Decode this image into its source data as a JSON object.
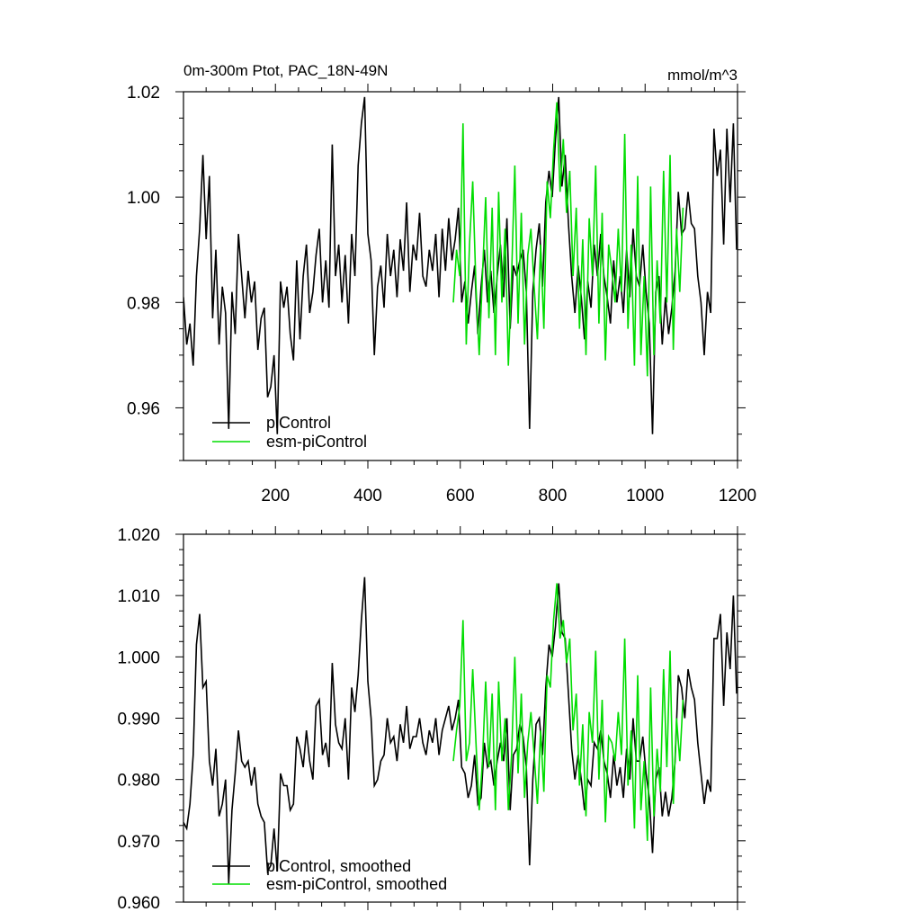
{
  "figure": {
    "title_left": "0m-300m Ptot, PAC_18N-49N",
    "title_right": "mmol/m^3"
  },
  "chart_data": [
    {
      "type": "line",
      "title": "0m-300m Ptot, PAC_18N-49N",
      "units": "mmol/m^3",
      "xlim": [
        1,
        1200
      ],
      "ylim": [
        0.95,
        1.02
      ],
      "x_ticks": [
        200,
        400,
        600,
        800,
        1000,
        1200
      ],
      "x_tick_labels": [
        "200",
        "400",
        "600",
        "800",
        "1000",
        "1200"
      ],
      "y_ticks": [
        0.96,
        0.98,
        1.0,
        1.02
      ],
      "y_tick_labels": [
        "0.96",
        "0.98",
        "1.00",
        "1.02"
      ],
      "legend_placement": "bottom-left",
      "series": [
        {
          "name": "piControl",
          "color": "#000000",
          "x": [
            1,
            8,
            15,
            22,
            29,
            36,
            43,
            50,
            57,
            64,
            71,
            78,
            85,
            92,
            99,
            106,
            113,
            120,
            127,
            134,
            141,
            148,
            155,
            162,
            169,
            176,
            183,
            190,
            197,
            204,
            211,
            218,
            225,
            232,
            239,
            246,
            253,
            260,
            267,
            274,
            281,
            288,
            295,
            302,
            309,
            316,
            323,
            330,
            337,
            344,
            351,
            358,
            365,
            372,
            379,
            386,
            393,
            400,
            407,
            414,
            421,
            428,
            435,
            442,
            449,
            456,
            463,
            470,
            477,
            484,
            491,
            498,
            505,
            512,
            519,
            526,
            533,
            540,
            547,
            554,
            561,
            568,
            575,
            582,
            589,
            596,
            603,
            610,
            617,
            624,
            631,
            638,
            645,
            652,
            659,
            666,
            673,
            680,
            687,
            694,
            701,
            708,
            715,
            722,
            729,
            736,
            743,
            750,
            757,
            764,
            771,
            778,
            785,
            792,
            799,
            806,
            813,
            820,
            827,
            834,
            841,
            848,
            855,
            862,
            869,
            876,
            883,
            890,
            897,
            904,
            911,
            918,
            925,
            932,
            939,
            946,
            953,
            960,
            967,
            974,
            981,
            988,
            995,
            1002,
            1009,
            1016,
            1023,
            1030,
            1037,
            1044,
            1051,
            1058,
            1065,
            1072,
            1079,
            1086,
            1093,
            1100,
            1107,
            1114,
            1121,
            1128,
            1135,
            1142,
            1149,
            1156,
            1163,
            1170,
            1177,
            1184,
            1191,
            1198
          ],
          "y": [
            0.981,
            0.972,
            0.976,
            0.968,
            0.985,
            0.994,
            1.008,
            0.992,
            1.004,
            0.977,
            0.99,
            0.972,
            0.983,
            0.978,
            0.956,
            0.982,
            0.974,
            0.993,
            0.985,
            0.977,
            0.986,
            0.98,
            0.984,
            0.971,
            0.977,
            0.979,
            0.962,
            0.964,
            0.97,
            0.955,
            0.984,
            0.979,
            0.983,
            0.974,
            0.969,
            0.988,
            0.973,
            0.985,
            0.991,
            0.978,
            0.982,
            0.989,
            0.994,
            0.98,
            0.988,
            0.979,
            1.01,
            0.985,
            0.991,
            0.98,
            0.989,
            0.976,
            0.993,
            0.985,
            1.006,
            1.014,
            1.019,
            0.993,
            0.988,
            0.97,
            0.983,
            0.987,
            0.979,
            0.993,
            0.985,
            0.99,
            0.981,
            0.992,
            0.986,
            0.999,
            0.982,
            0.991,
            0.988,
            0.997,
            0.985,
            0.983,
            0.99,
            0.986,
            0.993,
            0.981,
            0.994,
            0.986,
            0.996,
            0.988,
            0.992,
            0.998,
            0.98,
            0.984,
            0.976,
            0.982,
            0.987,
            0.974,
            0.983,
            0.99,
            0.98,
            0.986,
            0.978,
            0.985,
            0.991,
            0.981,
            0.996,
            0.975,
            0.987,
            0.985,
            0.988,
            0.99,
            0.982,
            0.956,
            0.982,
            0.99,
            0.995,
            0.983,
            0.999,
            1.005,
            1.0,
            1.011,
            1.019,
            1.002,
            1.008,
            0.995,
            0.985,
            0.978,
            0.987,
            0.981,
            0.973,
            0.984,
            0.979,
            0.991,
            0.985,
            0.993,
            0.985,
            0.981,
            0.976,
            0.988,
            0.98,
            0.985,
            0.978,
            0.99,
            0.981,
            0.994,
            0.985,
            0.983,
            0.991,
            0.982,
            0.976,
            0.955,
            0.982,
            0.985,
            0.972,
            0.981,
            0.974,
            0.979,
            0.986,
            1.001,
            0.993,
            0.994,
            1.001,
            0.995,
            0.994,
            0.985,
            0.98,
            0.97,
            0.982,
            0.978,
            1.013,
            1.004,
            1.009,
            0.991,
            1.013,
            0.999,
            1.014,
            0.99
          ]
        },
        {
          "name": "esm-piControl",
          "color": "#00dd00",
          "x": [
            585,
            592,
            599,
            606,
            613,
            620,
            627,
            634,
            641,
            648,
            655,
            662,
            669,
            676,
            683,
            690,
            697,
            704,
            711,
            718,
            725,
            732,
            739,
            746,
            753,
            760,
            767,
            774,
            781,
            788,
            795,
            802,
            809,
            816,
            823,
            830,
            837,
            844,
            851,
            858,
            865,
            872,
            879,
            886,
            893,
            900,
            907,
            914,
            921,
            928,
            935,
            942,
            949,
            956,
            963,
            970,
            977,
            984,
            991,
            998,
            1005,
            1012,
            1019,
            1026,
            1033,
            1040,
            1047,
            1054,
            1061,
            1068,
            1075,
            1082
          ],
          "y": [
            0.98,
            0.99,
            0.985,
            1.014,
            0.972,
            0.991,
            1.003,
            0.983,
            0.97,
            0.985,
            1.0,
            0.977,
            0.998,
            0.97,
            1.001,
            0.98,
            0.994,
            0.968,
            0.985,
            1.006,
            0.976,
            0.997,
            0.972,
            0.989,
            0.994,
            0.983,
            0.973,
            0.991,
            0.975,
            1.003,
            0.996,
            1.009,
            1.018,
            1.001,
            1.011,
            0.997,
            1.005,
            0.985,
            0.998,
            0.975,
            0.992,
            0.97,
            0.996,
            0.985,
            1.006,
            0.976,
            0.997,
            0.969,
            0.991,
            0.986,
            0.98,
            0.994,
            0.982,
            1.012,
            0.975,
            0.991,
            0.968,
            1.004,
            0.97,
            0.985,
            0.966,
            1.002,
            0.97,
            0.988,
            0.976,
            1.005,
            0.98,
            1.008,
            0.971,
            0.994,
            0.982,
            0.998
          ]
        }
      ]
    },
    {
      "type": "line",
      "xlim": [
        1,
        1200
      ],
      "ylim": [
        0.96,
        1.02
      ],
      "x_ticks": [
        200,
        400,
        600,
        800,
        1000,
        1200
      ],
      "y_ticks": [
        0.96,
        0.97,
        0.98,
        0.99,
        1.0,
        1.01,
        1.02
      ],
      "y_tick_labels": [
        "0.960",
        "0.970",
        "0.980",
        "0.990",
        "1.000",
        "1.010",
        "1.020"
      ],
      "legend_placement": "bottom-left",
      "series": [
        {
          "name": "piControl, smoothed",
          "color": "#000000",
          "x": [
            1,
            8,
            15,
            22,
            29,
            36,
            43,
            50,
            57,
            64,
            71,
            78,
            85,
            92,
            99,
            106,
            113,
            120,
            127,
            134,
            141,
            148,
            155,
            162,
            169,
            176,
            183,
            190,
            197,
            204,
            211,
            218,
            225,
            232,
            239,
            246,
            253,
            260,
            267,
            274,
            281,
            288,
            295,
            302,
            309,
            316,
            323,
            330,
            337,
            344,
            351,
            358,
            365,
            372,
            379,
            386,
            393,
            400,
            407,
            414,
            421,
            428,
            435,
            442,
            449,
            456,
            463,
            470,
            477,
            484,
            491,
            498,
            505,
            512,
            519,
            526,
            533,
            540,
            547,
            554,
            561,
            568,
            575,
            582,
            589,
            596,
            603,
            610,
            617,
            624,
            631,
            638,
            645,
            652,
            659,
            666,
            673,
            680,
            687,
            694,
            701,
            708,
            715,
            722,
            729,
            736,
            743,
            750,
            757,
            764,
            771,
            778,
            785,
            792,
            799,
            806,
            813,
            820,
            827,
            834,
            841,
            848,
            855,
            862,
            869,
            876,
            883,
            890,
            897,
            904,
            911,
            918,
            925,
            932,
            939,
            946,
            953,
            960,
            967,
            974,
            981,
            988,
            995,
            1002,
            1009,
            1016,
            1023,
            1030,
            1037,
            1044,
            1051,
            1058,
            1065,
            1072,
            1079,
            1086,
            1093,
            1100,
            1107,
            1114,
            1121,
            1128,
            1135,
            1142,
            1149,
            1156,
            1163,
            1170,
            1177,
            1184,
            1191,
            1198
          ],
          "y": [
            0.973,
            0.972,
            0.976,
            0.984,
            1.002,
            1.007,
            0.995,
            0.996,
            0.983,
            0.979,
            0.985,
            0.974,
            0.976,
            0.98,
            0.963,
            0.975,
            0.981,
            0.988,
            0.983,
            0.982,
            0.983,
            0.979,
            0.982,
            0.976,
            0.974,
            0.973,
            0.965,
            0.966,
            0.972,
            0.965,
            0.981,
            0.979,
            0.979,
            0.975,
            0.976,
            0.987,
            0.985,
            0.982,
            0.988,
            0.983,
            0.98,
            0.992,
            0.993,
            0.984,
            0.986,
            0.982,
            0.999,
            0.989,
            0.986,
            0.985,
            0.99,
            0.98,
            0.995,
            0.991,
            0.997,
            1.006,
            1.013,
            0.996,
            0.99,
            0.979,
            0.98,
            0.983,
            0.984,
            0.99,
            0.986,
            0.987,
            0.983,
            0.989,
            0.986,
            0.992,
            0.985,
            0.987,
            0.987,
            0.99,
            0.986,
            0.984,
            0.988,
            0.986,
            0.99,
            0.984,
            0.988,
            0.99,
            0.992,
            0.988,
            0.99,
            0.993,
            0.982,
            0.981,
            0.977,
            0.979,
            0.984,
            0.976,
            0.977,
            0.986,
            0.982,
            0.983,
            0.979,
            0.983,
            0.986,
            0.983,
            0.99,
            0.975,
            0.984,
            0.985,
            0.989,
            0.987,
            0.982,
            0.966,
            0.98,
            0.989,
            0.99,
            0.984,
            0.995,
            1.002,
            1.0,
            1.005,
            1.012,
            1.004,
            1.003,
            0.994,
            0.985,
            0.98,
            0.984,
            0.98,
            0.975,
            0.98,
            0.979,
            0.986,
            0.985,
            0.988,
            0.983,
            0.981,
            0.977,
            0.984,
            0.979,
            0.982,
            0.977,
            0.985,
            0.98,
            0.99,
            0.983,
            0.983,
            0.987,
            0.981,
            0.977,
            0.968,
            0.98,
            0.982,
            0.974,
            0.978,
            0.974,
            0.977,
            0.983,
            0.997,
            0.995,
            0.99,
            0.998,
            0.995,
            0.993,
            0.986,
            0.981,
            0.976,
            0.98,
            0.978,
            1.003,
            1.003,
            1.007,
            0.992,
            1.004,
            0.998,
            1.01,
            0.994
          ]
        },
        {
          "name": "esm-piControl, smoothed",
          "color": "#00dd00",
          "x": [
            585,
            592,
            599,
            606,
            613,
            620,
            627,
            634,
            641,
            648,
            655,
            662,
            669,
            676,
            683,
            690,
            697,
            704,
            711,
            718,
            725,
            732,
            739,
            746,
            753,
            760,
            767,
            774,
            781,
            788,
            795,
            802,
            809,
            816,
            823,
            830,
            837,
            844,
            851,
            858,
            865,
            872,
            879,
            886,
            893,
            900,
            907,
            914,
            921,
            928,
            935,
            942,
            949,
            956,
            963,
            970,
            977,
            984,
            991,
            998,
            1005,
            1012,
            1019,
            1026,
            1033,
            1040,
            1047,
            1054,
            1061,
            1068,
            1075,
            1082
          ],
          "y": [
            0.983,
            0.988,
            0.992,
            1.006,
            0.983,
            0.986,
            0.998,
            0.986,
            0.975,
            0.983,
            0.996,
            0.982,
            0.994,
            0.975,
            0.996,
            0.983,
            0.99,
            0.975,
            0.984,
            1.0,
            0.981,
            0.994,
            0.977,
            0.986,
            0.991,
            0.984,
            0.976,
            0.988,
            0.978,
            0.997,
            0.995,
            1.006,
            1.012,
            1.003,
            1.006,
            0.999,
            1.003,
            0.988,
            0.994,
            0.979,
            0.989,
            0.974,
            0.991,
            0.986,
            1.001,
            0.98,
            0.993,
            0.973,
            0.987,
            0.986,
            0.983,
            0.991,
            0.984,
            1.003,
            0.979,
            0.988,
            0.972,
            0.997,
            0.975,
            0.983,
            0.97,
            0.995,
            0.974,
            0.985,
            0.978,
            0.998,
            0.982,
            1.001,
            0.976,
            0.99,
            0.983,
            0.993
          ]
        }
      ]
    }
  ]
}
